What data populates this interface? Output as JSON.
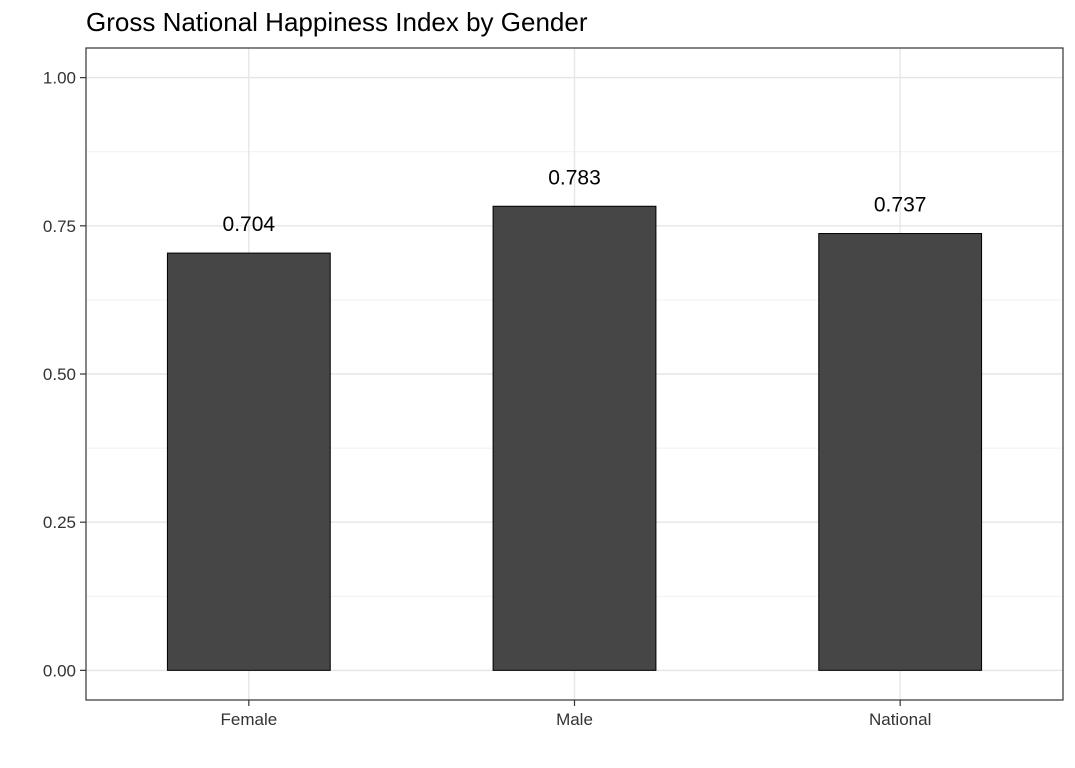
{
  "chart_data": {
    "type": "bar",
    "title": "Gross National Happiness Index by Gender",
    "xlabel": "",
    "ylabel": "",
    "categories": [
      "Female",
      "Male",
      "National"
    ],
    "values": [
      0.704,
      0.783,
      0.737
    ],
    "value_labels": [
      "0.704",
      "0.783",
      "0.737"
    ],
    "ylim": [
      -0.05,
      1.05
    ],
    "y_ticks": [
      0.0,
      0.25,
      0.5,
      0.75,
      1.0
    ],
    "y_tick_labels": [
      "0.00",
      "0.25",
      "0.50",
      "0.75",
      "1.00"
    ],
    "y_minor_ticks": [
      0.125,
      0.375,
      0.625,
      0.875
    ],
    "grid": true,
    "legend": "none",
    "bar_color": "#464646",
    "bar_outline_color": "#000000"
  }
}
